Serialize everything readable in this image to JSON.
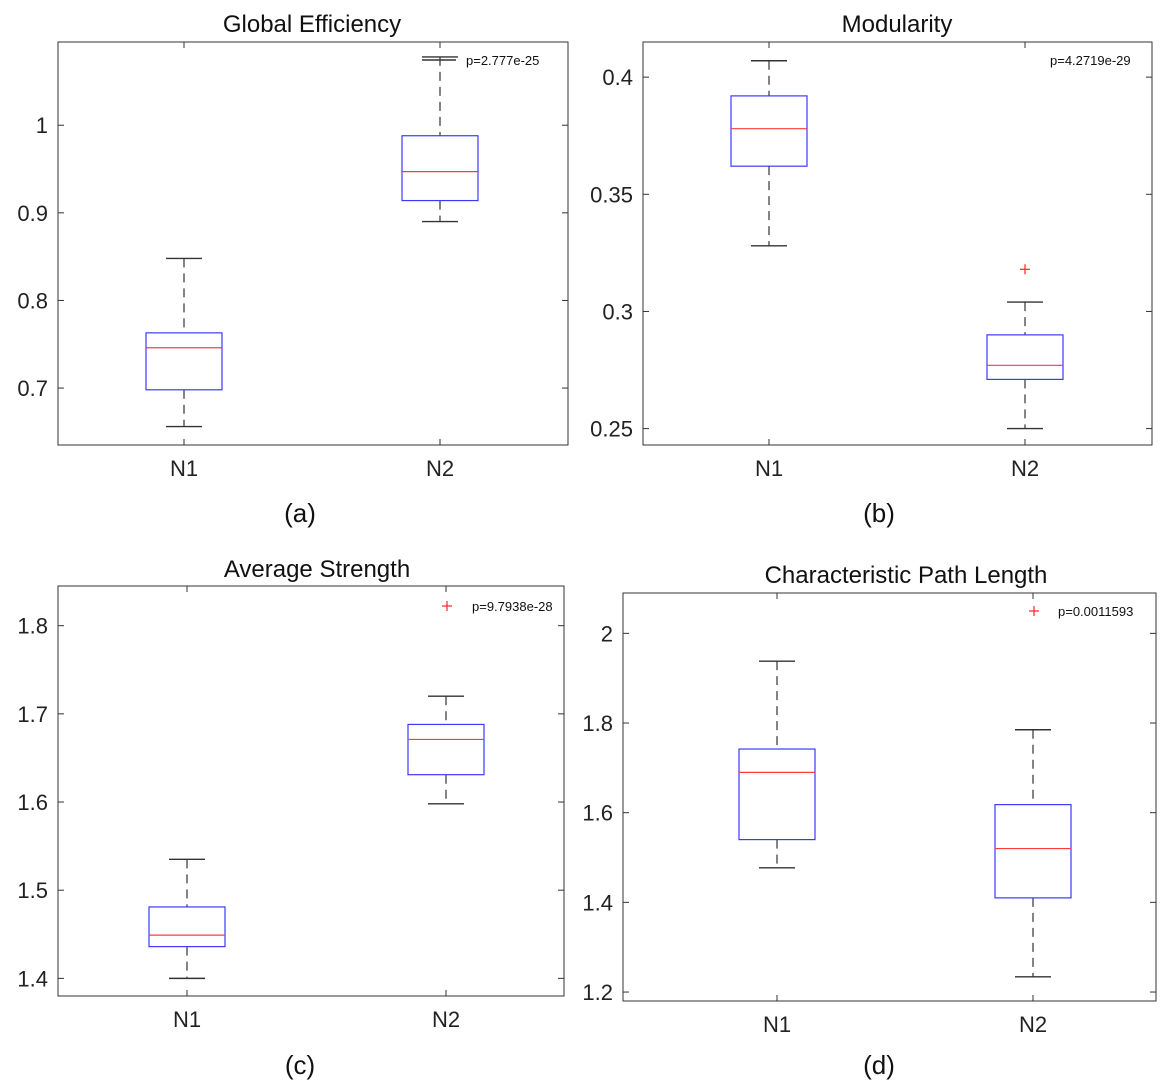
{
  "chart_data": [
    {
      "type": "box",
      "panel": "(a)",
      "title": "Global Efficiency",
      "categories": [
        "N1",
        "N2"
      ],
      "ylim": [
        0.635,
        1.095
      ],
      "yticks": [
        0.7,
        0.8,
        0.9,
        1
      ],
      "ytick_labels": [
        "0.7",
        "0.8",
        "0.9",
        "1"
      ],
      "boxes": [
        {
          "name": "N1",
          "whisker_low": 0.656,
          "q1": 0.698,
          "median": 0.746,
          "q3": 0.763,
          "whisker_high": 0.848,
          "outliers": []
        },
        {
          "name": "N2",
          "whisker_low": 0.89,
          "q1": 0.914,
          "median": 0.947,
          "q3": 0.988,
          "whisker_high": 1.078,
          "outliers": []
        }
      ],
      "annotation": "p=2.777e-25",
      "annotation_marker": "line",
      "caption": "(a)"
    },
    {
      "type": "box",
      "panel": "(b)",
      "title": "Modularity",
      "categories": [
        "N1",
        "N2"
      ],
      "ylim": [
        0.243,
        0.415
      ],
      "yticks": [
        0.25,
        0.3,
        0.35,
        0.4
      ],
      "ytick_labels": [
        "0.25",
        "0.3",
        "0.35",
        "0.4"
      ],
      "boxes": [
        {
          "name": "N1",
          "whisker_low": 0.328,
          "q1": 0.362,
          "median": 0.378,
          "q3": 0.392,
          "whisker_high": 0.407,
          "outliers": []
        },
        {
          "name": "N2",
          "whisker_low": 0.25,
          "q1": 0.271,
          "median": 0.277,
          "q3": 0.29,
          "whisker_high": 0.304,
          "outliers": [
            0.318
          ]
        }
      ],
      "annotation": "p=4.2719e-29",
      "annotation_marker": "none",
      "caption": "(b)"
    },
    {
      "type": "box",
      "panel": "(c)",
      "title": "Average Strength",
      "categories": [
        "N1",
        "N2"
      ],
      "ylim": [
        1.38,
        1.845
      ],
      "yticks": [
        1.4,
        1.5,
        1.6,
        1.7,
        1.8
      ],
      "ytick_labels": [
        "1.4",
        "1.5",
        "1.6",
        "1.7",
        "1.8"
      ],
      "boxes": [
        {
          "name": "N1",
          "whisker_low": 1.4,
          "q1": 1.436,
          "median": 1.449,
          "q3": 1.481,
          "whisker_high": 1.535,
          "outliers": []
        },
        {
          "name": "N2",
          "whisker_low": 1.598,
          "q1": 1.631,
          "median": 1.671,
          "q3": 1.688,
          "whisker_high": 1.72,
          "outliers": []
        }
      ],
      "annotation": "p=9.7938e-28",
      "annotation_marker": "plus",
      "caption": "(c)"
    },
    {
      "type": "box",
      "panel": "(d)",
      "title": "Characteristic Path Length",
      "categories": [
        "N1",
        "N2"
      ],
      "ylim": [
        1.18,
        2.09
      ],
      "yticks": [
        1.2,
        1.4,
        1.6,
        1.8,
        2
      ],
      "ytick_labels": [
        "1.2",
        "1.4",
        "1.6",
        "1.8",
        "2"
      ],
      "boxes": [
        {
          "name": "N1",
          "whisker_low": 1.477,
          "q1": 1.54,
          "median": 1.69,
          "q3": 1.742,
          "whisker_high": 1.938,
          "outliers": []
        },
        {
          "name": "N2",
          "whisker_low": 1.234,
          "q1": 1.41,
          "median": 1.52,
          "q3": 1.618,
          "whisker_high": 1.785,
          "outliers": []
        }
      ],
      "annotation": "p=0.0011593",
      "annotation_marker": "plus",
      "caption": "(d)"
    }
  ],
  "colors": {
    "box": "#3b3bff",
    "median": "#ff3b3b",
    "whisker": "#333333",
    "outlier": "#ff2222",
    "axis": "#333333"
  }
}
